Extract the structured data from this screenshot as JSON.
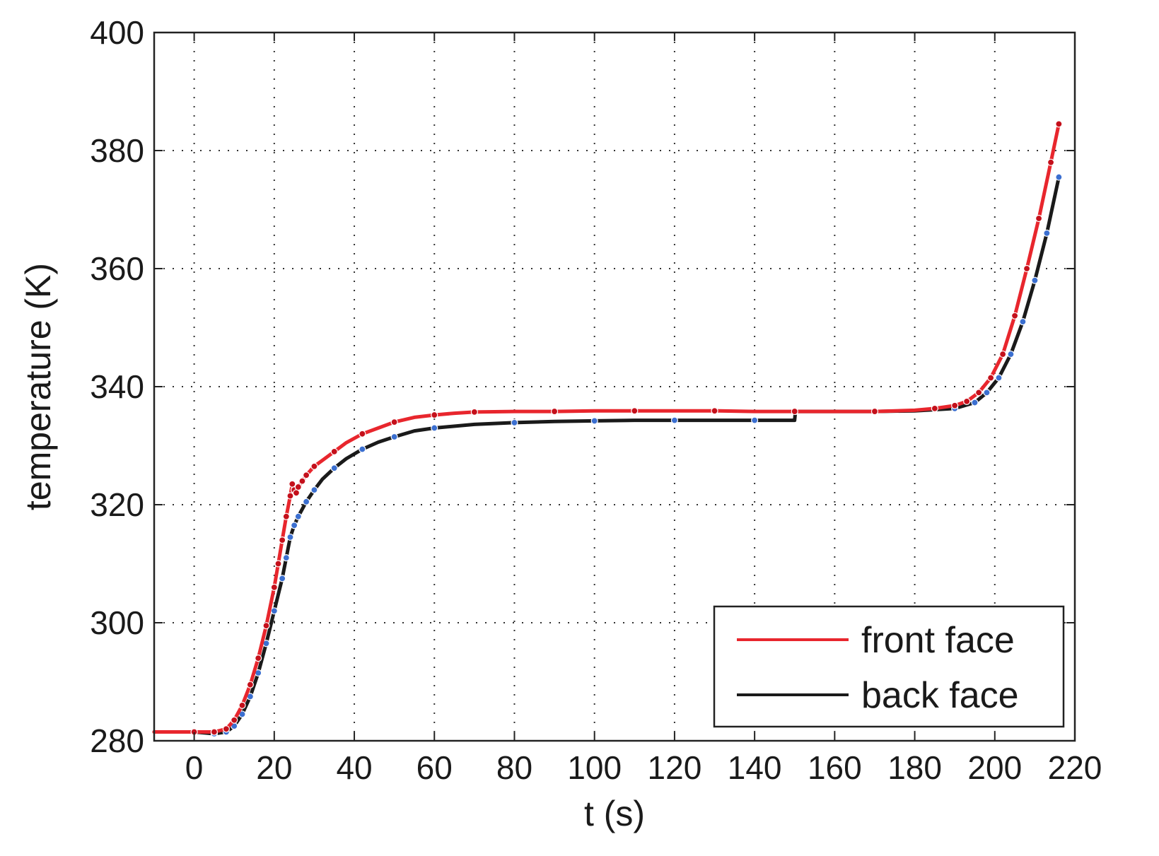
{
  "chart_data": {
    "type": "line",
    "title": "",
    "xlabel": "t (s)",
    "ylabel": "temperature (K)",
    "xlim": [
      -10,
      220
    ],
    "ylim": [
      280,
      400
    ],
    "xticks": [
      0,
      20,
      40,
      60,
      80,
      100,
      120,
      140,
      160,
      180,
      200,
      220
    ],
    "yticks": [
      280,
      300,
      320,
      340,
      360,
      380,
      400
    ],
    "grid": true,
    "legend_position": "bottom-right",
    "series": [
      {
        "name": "front face",
        "color": "#e8262d",
        "marker_color": "#c4101b",
        "x": [
          -10,
          0,
          5,
          8,
          10,
          12,
          14,
          16,
          18,
          20,
          21,
          22,
          23,
          24,
          24.5,
          25,
          25.5,
          26,
          27,
          28,
          30,
          32,
          35,
          38,
          42,
          46,
          50,
          55,
          60,
          65,
          70,
          80,
          90,
          100,
          110,
          120,
          130,
          140,
          150,
          160,
          170,
          180,
          185,
          190,
          193,
          196,
          199,
          202,
          205,
          208,
          211,
          214,
          216
        ],
        "y": [
          281.5,
          281.5,
          281.5,
          282,
          283.5,
          286,
          289.5,
          294,
          299.5,
          306,
          310,
          314,
          318,
          321.5,
          323.5,
          322.5,
          322,
          323,
          324,
          325,
          326.5,
          327.5,
          329,
          330.5,
          332,
          333,
          334,
          334.8,
          335.2,
          335.5,
          335.7,
          335.8,
          335.8,
          335.9,
          335.9,
          335.9,
          335.9,
          335.8,
          335.8,
          335.8,
          335.8,
          336,
          336.3,
          336.8,
          337.5,
          339,
          341.5,
          345.5,
          352,
          360,
          368.5,
          378,
          384.5
        ]
      },
      {
        "name": "back face",
        "color": "#1a1a1a",
        "marker_color": "#3b6fd0",
        "x": [
          -10,
          0,
          5,
          8,
          10,
          12,
          14,
          16,
          18,
          20,
          22,
          23,
          24,
          25,
          26,
          28,
          30,
          32,
          35,
          38,
          42,
          46,
          50,
          55,
          60,
          70,
          80,
          90,
          100,
          110,
          120,
          130,
          140,
          150,
          150.2,
          160,
          170,
          180,
          190,
          195,
          198,
          201,
          204,
          207,
          210,
          213,
          216
        ],
        "y": [
          281.5,
          281.5,
          281.2,
          281.5,
          282.5,
          284.5,
          287.5,
          291.5,
          296.5,
          302,
          307.5,
          311,
          314.5,
          316.5,
          318,
          320.5,
          322.5,
          324.3,
          326.2,
          327.8,
          329.4,
          330.6,
          331.5,
          332.5,
          333,
          333.6,
          333.9,
          334.1,
          334.2,
          334.3,
          334.3,
          334.3,
          334.3,
          334.3,
          335.8,
          335.8,
          335.8,
          335.9,
          336.3,
          337.3,
          339,
          341.5,
          345.5,
          351,
          358,
          366,
          375.5
        ]
      }
    ]
  }
}
